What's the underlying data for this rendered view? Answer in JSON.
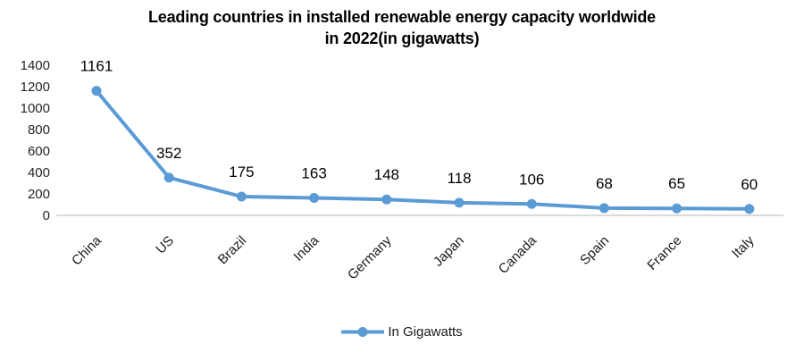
{
  "title": {
    "line1": "Leading countries in installed renewable energy capacity worldwide",
    "line2": "in 2022(in gigawatts)"
  },
  "legend": {
    "label": "In Gigawatts"
  },
  "colors": {
    "line": "#5B9BD5",
    "axis_line": "#cfcfcf",
    "tick_text": "#262626",
    "label_text": "#000000"
  },
  "chart_data": {
    "type": "line",
    "title": "Leading countries in installed renewable energy capacity worldwide in 2022(in gigawatts)",
    "categories": [
      "China",
      "US",
      "Brazil",
      "India",
      "Germany",
      "Japan",
      "Canada",
      "Spain",
      "France",
      "Italy"
    ],
    "series": [
      {
        "name": "In Gigawatts",
        "values": [
          1161,
          352,
          175,
          163,
          148,
          118,
          106,
          68,
          65,
          60
        ]
      }
    ],
    "data_labels": [
      1161,
      352,
      175,
      163,
      148,
      118,
      106,
      68,
      65,
      60
    ],
    "xlabel": "",
    "ylabel": "",
    "ylim": [
      0,
      1400
    ],
    "y_ticks": [
      0,
      200,
      400,
      600,
      800,
      1000,
      1200,
      1400
    ],
    "grid": false,
    "marker": "circle",
    "legend_position": "bottom",
    "x_label_rotation_deg": 45
  }
}
